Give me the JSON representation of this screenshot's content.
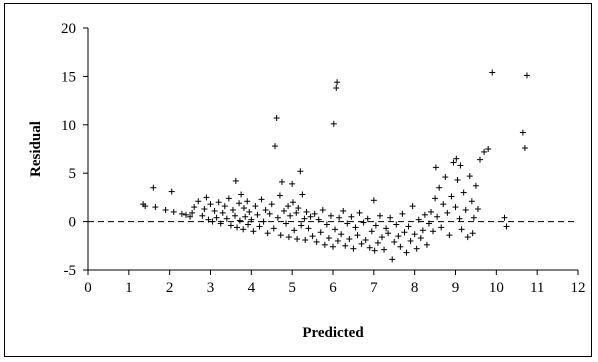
{
  "chart_data": {
    "type": "scatter",
    "title": "",
    "xlabel": "Predicted",
    "ylabel": "Residual",
    "xlim": [
      0,
      12
    ],
    "ylim": [
      -5,
      20
    ],
    "xticks": [
      0,
      1,
      2,
      3,
      4,
      5,
      6,
      7,
      8,
      9,
      10,
      11,
      12
    ],
    "yticks": [
      -5,
      0,
      5,
      10,
      15,
      20
    ],
    "grid": false,
    "legend": "none",
    "reference_line": {
      "y": 0,
      "style": "dashed"
    },
    "marker": "plus",
    "series": [
      {
        "points": [
          [
            1.35,
            1.8
          ],
          [
            1.4,
            1.6
          ],
          [
            1.6,
            3.5
          ],
          [
            1.65,
            1.5
          ],
          [
            1.9,
            1.2
          ],
          [
            2.05,
            3.1
          ],
          [
            2.1,
            1.0
          ],
          [
            2.3,
            0.8
          ],
          [
            2.4,
            0.7
          ],
          [
            2.5,
            0.5
          ],
          [
            2.55,
            0.9
          ],
          [
            2.6,
            1.5
          ],
          [
            2.7,
            2.1
          ],
          [
            2.8,
            0.6
          ],
          [
            2.85,
            1.3
          ],
          [
            2.9,
            2.5
          ],
          [
            2.95,
            0.2
          ],
          [
            3.0,
            1.8
          ],
          [
            3.05,
            0.0
          ],
          [
            3.1,
            1.1
          ],
          [
            3.15,
            0.4
          ],
          [
            3.2,
            2.0
          ],
          [
            3.25,
            -0.2
          ],
          [
            3.3,
            0.9
          ],
          [
            3.35,
            1.6
          ],
          [
            3.4,
            0.3
          ],
          [
            3.45,
            2.4
          ],
          [
            3.5,
            -0.4
          ],
          [
            3.55,
            1.2
          ],
          [
            3.6,
            0.6
          ],
          [
            3.62,
            4.2
          ],
          [
            3.65,
            -0.6
          ],
          [
            3.7,
            1.9
          ],
          [
            3.72,
            0.1
          ],
          [
            3.75,
            2.8
          ],
          [
            3.8,
            -0.8
          ],
          [
            3.82,
            1.4
          ],
          [
            3.85,
            0.5
          ],
          [
            3.9,
            2.1
          ],
          [
            3.92,
            -0.3
          ],
          [
            3.95,
            1.0
          ],
          [
            4.0,
            0.2
          ],
          [
            4.05,
            -1.0
          ],
          [
            4.1,
            1.6
          ],
          [
            4.15,
            0.7
          ],
          [
            4.2,
            -0.5
          ],
          [
            4.25,
            2.3
          ],
          [
            4.3,
            0.0
          ],
          [
            4.35,
            1.2
          ],
          [
            4.4,
            -1.2
          ],
          [
            4.45,
            0.8
          ],
          [
            4.5,
            1.8
          ],
          [
            4.55,
            -0.7
          ],
          [
            4.58,
            7.8
          ],
          [
            4.62,
            10.7
          ],
          [
            4.65,
            0.4
          ],
          [
            4.7,
            2.7
          ],
          [
            4.72,
            -1.4
          ],
          [
            4.75,
            4.1
          ],
          [
            4.8,
            1.1
          ],
          [
            4.85,
            -0.2
          ],
          [
            4.9,
            1.6
          ],
          [
            4.92,
            -1.6
          ],
          [
            4.95,
            0.6
          ],
          [
            5.0,
            3.9
          ],
          [
            5.02,
            2.0
          ],
          [
            5.05,
            -0.9
          ],
          [
            5.1,
            0.9
          ],
          [
            5.12,
            -1.8
          ],
          [
            5.15,
            1.4
          ],
          [
            5.2,
            5.2
          ],
          [
            5.22,
            -0.4
          ],
          [
            5.25,
            2.8
          ],
          [
            5.3,
            0.3
          ],
          [
            5.32,
            -1.9
          ],
          [
            5.35,
            1.0
          ],
          [
            5.4,
            -0.7
          ],
          [
            5.45,
            0.5
          ],
          [
            5.5,
            -1.5
          ],
          [
            5.55,
            0.8
          ],
          [
            5.6,
            -2.1
          ],
          [
            5.65,
            0.2
          ],
          [
            5.7,
            -1.1
          ],
          [
            5.75,
            1.2
          ],
          [
            5.8,
            -2.4
          ],
          [
            5.85,
            -0.3
          ],
          [
            5.9,
            -1.7
          ],
          [
            5.95,
            0.6
          ],
          [
            6.0,
            -2.6
          ],
          [
            6.02,
            10.1
          ],
          [
            6.05,
            -0.8
          ],
          [
            6.08,
            13.8
          ],
          [
            6.1,
            14.4
          ],
          [
            6.12,
            -2.0
          ],
          [
            6.15,
            0.4
          ],
          [
            6.2,
            -1.3
          ],
          [
            6.25,
            1.1
          ],
          [
            6.3,
            -2.5
          ],
          [
            6.35,
            -0.2
          ],
          [
            6.4,
            -1.8
          ],
          [
            6.45,
            0.5
          ],
          [
            6.5,
            -2.8
          ],
          [
            6.55,
            -0.6
          ],
          [
            6.6,
            -1.4
          ],
          [
            6.65,
            0.9
          ],
          [
            6.7,
            -2.3
          ],
          [
            6.75,
            -0.1
          ],
          [
            6.8,
            -1.9
          ],
          [
            6.85,
            0.3
          ],
          [
            6.9,
            -2.7
          ],
          [
            6.95,
            -1.0
          ],
          [
            7.0,
            2.2
          ],
          [
            7.02,
            -3.0
          ],
          [
            7.05,
            -0.4
          ],
          [
            7.1,
            -2.2
          ],
          [
            7.15,
            0.6
          ],
          [
            7.2,
            -1.6
          ],
          [
            7.25,
            -2.9
          ],
          [
            7.3,
            -0.7
          ],
          [
            7.35,
            -1.2
          ],
          [
            7.4,
            0.4
          ],
          [
            7.45,
            -3.9
          ],
          [
            7.5,
            -2.1
          ],
          [
            7.55,
            -0.3
          ],
          [
            7.6,
            -1.5
          ],
          [
            7.65,
            -2.6
          ],
          [
            7.7,
            0.8
          ],
          [
            7.75,
            -1.1
          ],
          [
            7.8,
            -3.2
          ],
          [
            7.85,
            -0.5
          ],
          [
            7.9,
            -2.0
          ],
          [
            7.95,
            1.6
          ],
          [
            8.0,
            -1.3
          ],
          [
            8.05,
            -2.8
          ],
          [
            8.1,
            0.2
          ],
          [
            8.15,
            -1.7
          ],
          [
            8.2,
            -0.9
          ],
          [
            8.25,
            0.7
          ],
          [
            8.3,
            -2.4
          ],
          [
            8.35,
            -0.2
          ],
          [
            8.4,
            1.0
          ],
          [
            8.45,
            -1.0
          ],
          [
            8.5,
            2.4
          ],
          [
            8.52,
            5.6
          ],
          [
            8.55,
            0.5
          ],
          [
            8.6,
            3.5
          ],
          [
            8.65,
            -0.6
          ],
          [
            8.7,
            1.8
          ],
          [
            8.75,
            4.6
          ],
          [
            8.8,
            0.9
          ],
          [
            8.85,
            -1.4
          ],
          [
            8.9,
            2.6
          ],
          [
            8.95,
            6.1
          ],
          [
            9.0,
            1.5
          ],
          [
            9.02,
            6.5
          ],
          [
            9.05,
            4.3
          ],
          [
            9.1,
            0.3
          ],
          [
            9.12,
            5.8
          ],
          [
            9.15,
            -0.8
          ],
          [
            9.2,
            3.0
          ],
          [
            9.25,
            1.2
          ],
          [
            9.3,
            -1.6
          ],
          [
            9.35,
            4.7
          ],
          [
            9.4,
            2.1
          ],
          [
            9.42,
            -1.2
          ],
          [
            9.45,
            0.4
          ],
          [
            9.5,
            3.7
          ],
          [
            9.55,
            1.3
          ],
          [
            9.6,
            6.4
          ],
          [
            9.7,
            7.2
          ],
          [
            9.8,
            7.5
          ],
          [
            9.9,
            15.4
          ],
          [
            10.2,
            0.4
          ],
          [
            10.25,
            -0.5
          ],
          [
            10.65,
            9.2
          ],
          [
            10.7,
            7.6
          ],
          [
            10.75,
            15.1
          ]
        ]
      }
    ]
  }
}
